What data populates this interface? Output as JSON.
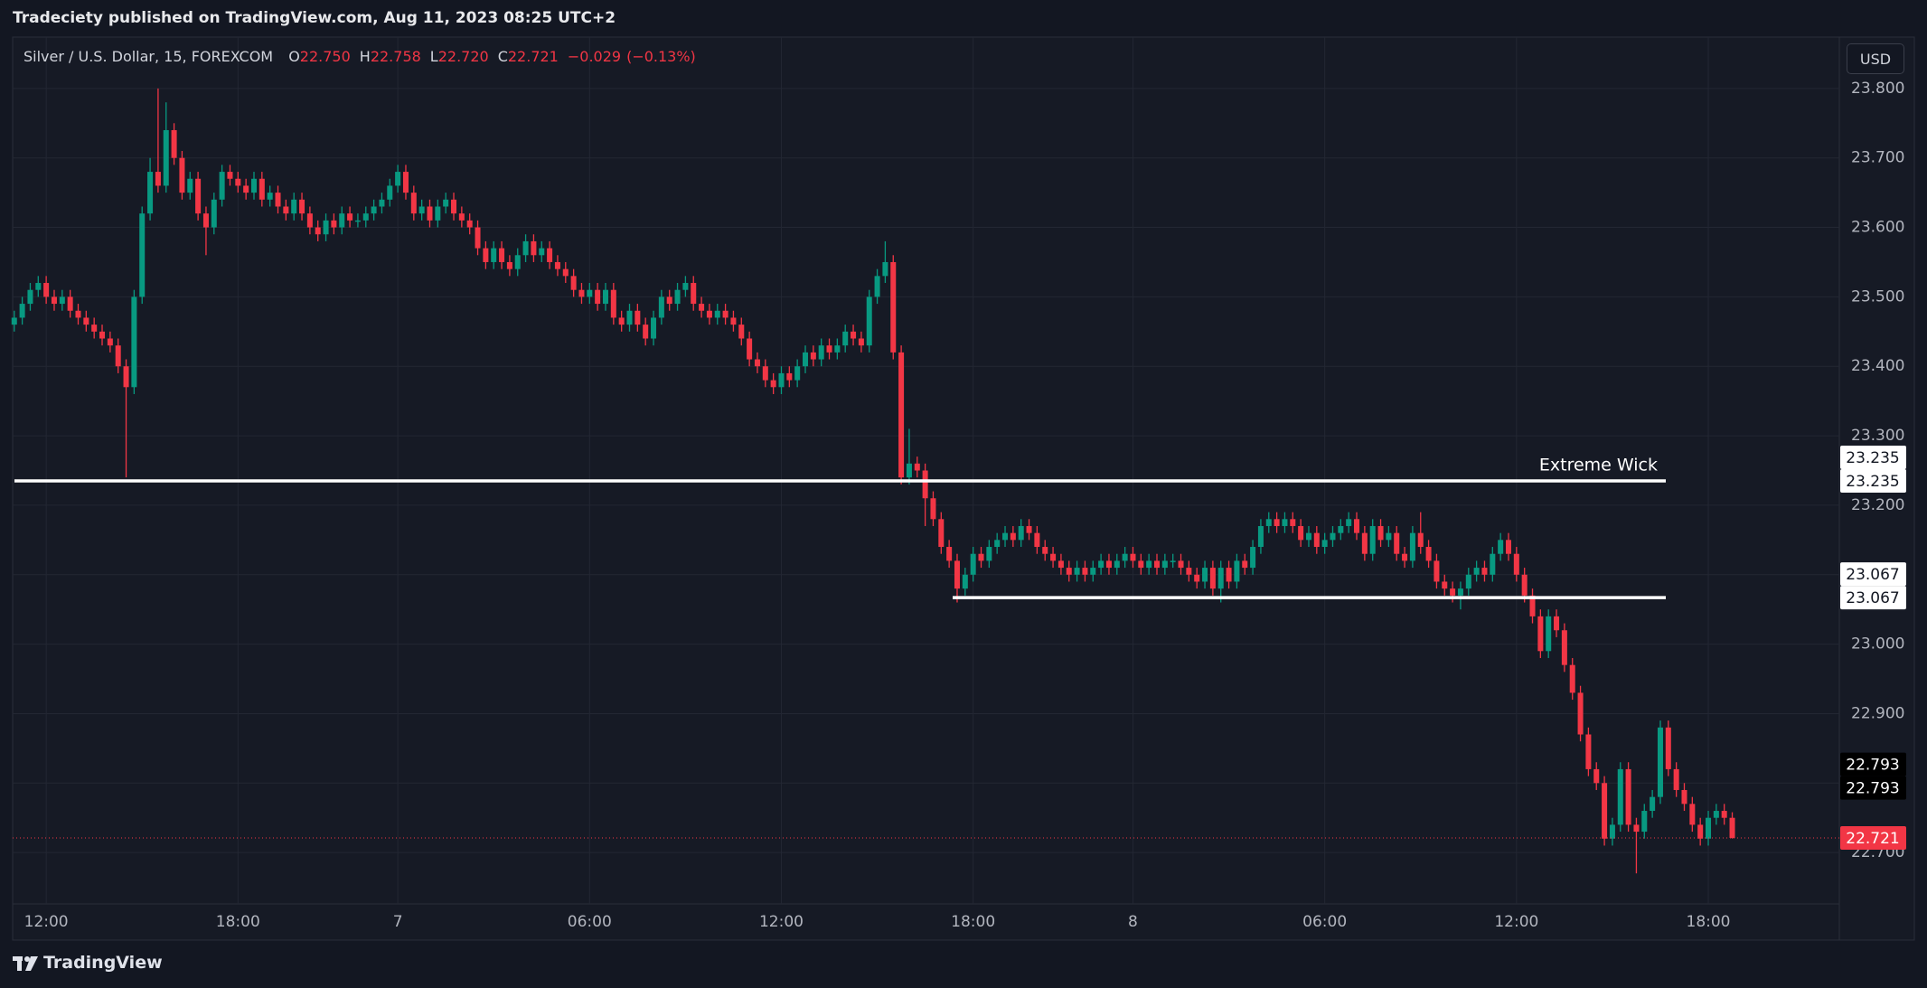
{
  "header": {
    "published": "Tradeciety published on TradingView.com, Aug 11, 2023 08:25 UTC+2"
  },
  "footer": {
    "brand": "TradingView"
  },
  "chart_data": {
    "type": "candlestick",
    "title": "Silver / U.S. Dollar, 15, FOREXCOM",
    "legend": [
      {
        "label": "O",
        "value": 22.75,
        "value_label": "22.750"
      },
      {
        "label": "H",
        "value": 22.758,
        "value_label": "22.758"
      },
      {
        "label": "L",
        "value": 22.72,
        "value_label": "22.720"
      },
      {
        "label": "C",
        "value": 22.721,
        "value_label": "22.721"
      }
    ],
    "change": {
      "value": -0.029,
      "label": "−0.029",
      "pct": -0.13,
      "pct_label": "(−0.13%)"
    },
    "currency": "USD",
    "up_color": "#089981",
    "down_color": "#f23645",
    "open": [
      23.46,
      23.47,
      23.49,
      23.51,
      23.52,
      23.5,
      23.49,
      23.5,
      23.48,
      23.47,
      23.46,
      23.45,
      23.44,
      23.43,
      23.4,
      23.37,
      23.5,
      23.62,
      23.68,
      23.66,
      23.74,
      23.7,
      23.65,
      23.67,
      23.62,
      23.6,
      23.64,
      23.68,
      23.67,
      23.66,
      23.65,
      23.67,
      23.64,
      23.65,
      23.63,
      23.62,
      23.64,
      23.62,
      23.6,
      23.59,
      23.61,
      23.6,
      23.62,
      23.61,
      23.61,
      23.62,
      23.63,
      23.64,
      23.66,
      23.68,
      23.65,
      23.62,
      23.63,
      23.61,
      23.63,
      23.64,
      23.62,
      23.61,
      23.6,
      23.57,
      23.55,
      23.57,
      23.55,
      23.54,
      23.56,
      23.58,
      23.56,
      23.57,
      23.55,
      23.54,
      23.53,
      23.51,
      23.5,
      23.51,
      23.49,
      23.51,
      23.47,
      23.46,
      23.48,
      23.46,
      23.44,
      23.47,
      23.5,
      23.49,
      23.51,
      23.52,
      23.49,
      23.48,
      23.47,
      23.48,
      23.47,
      23.46,
      23.44,
      23.41,
      23.4,
      23.38,
      23.37,
      23.39,
      23.38,
      23.4,
      23.42,
      23.41,
      23.43,
      23.42,
      23.43,
      23.45,
      23.44,
      23.43,
      23.5,
      23.53,
      23.55,
      23.42,
      23.24,
      23.26,
      23.25,
      23.21,
      23.18,
      23.14,
      23.12,
      23.08,
      23.1,
      23.13,
      23.12,
      23.14,
      23.15,
      23.16,
      23.15,
      23.17,
      23.16,
      23.14,
      23.13,
      23.12,
      23.11,
      23.1,
      23.11,
      23.1,
      23.11,
      23.12,
      23.11,
      23.12,
      23.13,
      23.12,
      23.11,
      23.12,
      23.11,
      23.12,
      23.12,
      23.11,
      23.1,
      23.09,
      23.11,
      23.08,
      23.11,
      23.09,
      23.12,
      23.11,
      23.14,
      23.17,
      23.18,
      23.17,
      23.18,
      23.17,
      23.15,
      23.16,
      23.14,
      23.15,
      23.16,
      23.17,
      23.18,
      23.16,
      23.13,
      23.17,
      23.15,
      23.16,
      23.13,
      23.12,
      23.16,
      23.14,
      23.12,
      23.09,
      23.08,
      23.07,
      23.08,
      23.1,
      23.11,
      23.1,
      23.13,
      23.15,
      23.13,
      23.1,
      23.07,
      23.04,
      22.99,
      23.04,
      23.02,
      22.97,
      22.93,
      22.87,
      22.82,
      22.8,
      22.72,
      22.74,
      22.82,
      22.74,
      22.73,
      22.76,
      22.78,
      22.88,
      22.82,
      22.79,
      22.77,
      22.74,
      22.72,
      22.75,
      22.76,
      22.75
    ],
    "high": [
      23.48,
      23.5,
      23.52,
      23.53,
      23.53,
      23.51,
      23.51,
      23.51,
      23.49,
      23.48,
      23.47,
      23.46,
      23.45,
      23.44,
      23.41,
      23.51,
      23.63,
      23.7,
      23.8,
      23.78,
      23.75,
      23.71,
      23.68,
      23.68,
      23.63,
      23.65,
      23.69,
      23.69,
      23.68,
      23.67,
      23.68,
      23.68,
      23.66,
      23.66,
      23.64,
      23.65,
      23.65,
      23.63,
      23.61,
      23.62,
      23.62,
      23.63,
      23.63,
      23.62,
      23.63,
      23.64,
      23.65,
      23.67,
      23.69,
      23.69,
      23.66,
      23.64,
      23.64,
      23.64,
      23.65,
      23.65,
      23.63,
      23.62,
      23.61,
      23.58,
      23.58,
      23.58,
      23.56,
      23.57,
      23.59,
      23.59,
      23.58,
      23.58,
      23.56,
      23.55,
      23.54,
      23.52,
      23.52,
      23.52,
      23.52,
      23.52,
      23.48,
      23.49,
      23.49,
      23.47,
      23.48,
      23.51,
      23.51,
      23.52,
      23.53,
      23.53,
      23.5,
      23.49,
      23.49,
      23.49,
      23.48,
      23.47,
      23.45,
      23.42,
      23.41,
      23.39,
      23.4,
      23.4,
      23.41,
      23.43,
      23.43,
      23.44,
      23.44,
      23.44,
      23.46,
      23.46,
      23.45,
      23.51,
      23.54,
      23.58,
      23.56,
      23.43,
      23.31,
      23.27,
      23.26,
      23.22,
      23.19,
      23.15,
      23.13,
      23.11,
      23.14,
      23.14,
      23.15,
      23.16,
      23.17,
      23.17,
      23.18,
      23.18,
      23.17,
      23.15,
      23.14,
      23.13,
      23.12,
      23.12,
      23.12,
      23.12,
      23.13,
      23.13,
      23.13,
      23.14,
      23.14,
      23.13,
      23.13,
      23.13,
      23.13,
      23.13,
      23.13,
      23.12,
      23.11,
      23.12,
      23.12,
      23.12,
      23.12,
      23.13,
      23.13,
      23.15,
      23.18,
      23.19,
      23.19,
      23.19,
      23.19,
      23.18,
      23.17,
      23.17,
      23.16,
      23.17,
      23.18,
      23.19,
      23.19,
      23.17,
      23.18,
      23.18,
      23.17,
      23.17,
      23.14,
      23.17,
      23.19,
      23.15,
      23.13,
      23.1,
      23.09,
      23.09,
      23.11,
      23.12,
      23.12,
      23.14,
      23.16,
      23.16,
      23.14,
      23.11,
      23.08,
      23.05,
      23.05,
      23.05,
      23.03,
      22.98,
      22.94,
      22.88,
      22.83,
      22.81,
      22.75,
      22.83,
      22.83,
      22.75,
      22.77,
      22.79,
      22.89,
      22.89,
      22.83,
      22.8,
      22.78,
      22.75,
      22.76,
      22.77,
      22.77,
      22.758
    ],
    "low": [
      23.45,
      23.46,
      23.48,
      23.5,
      23.49,
      23.48,
      23.48,
      23.47,
      23.46,
      23.45,
      23.44,
      23.43,
      23.42,
      23.39,
      23.24,
      23.36,
      23.49,
      23.61,
      23.65,
      23.65,
      23.69,
      23.64,
      23.64,
      23.61,
      23.56,
      23.59,
      23.63,
      23.66,
      23.65,
      23.64,
      23.64,
      23.63,
      23.63,
      23.62,
      23.61,
      23.61,
      23.61,
      23.59,
      23.58,
      23.58,
      23.59,
      23.59,
      23.6,
      23.6,
      23.6,
      23.61,
      23.62,
      23.63,
      23.65,
      23.64,
      23.61,
      23.61,
      23.6,
      23.6,
      23.62,
      23.61,
      23.6,
      23.59,
      23.56,
      23.54,
      23.54,
      23.54,
      23.53,
      23.53,
      23.55,
      23.55,
      23.55,
      23.54,
      23.53,
      23.52,
      23.5,
      23.49,
      23.49,
      23.48,
      23.48,
      23.46,
      23.45,
      23.45,
      23.45,
      23.43,
      23.43,
      23.46,
      23.48,
      23.48,
      23.5,
      23.48,
      23.47,
      23.46,
      23.46,
      23.46,
      23.45,
      23.43,
      23.4,
      23.39,
      23.37,
      23.36,
      23.36,
      23.37,
      23.37,
      23.39,
      23.4,
      23.4,
      23.41,
      23.41,
      23.42,
      23.43,
      23.42,
      23.42,
      23.49,
      23.52,
      23.41,
      23.23,
      23.23,
      23.24,
      23.17,
      23.17,
      23.13,
      23.11,
      23.06,
      23.07,
      23.09,
      23.11,
      23.11,
      23.13,
      23.14,
      23.14,
      23.14,
      23.15,
      23.13,
      23.12,
      23.11,
      23.1,
      23.09,
      23.09,
      23.09,
      23.09,
      23.1,
      23.1,
      23.1,
      23.11,
      23.11,
      23.1,
      23.1,
      23.1,
      23.1,
      23.11,
      23.1,
      23.09,
      23.08,
      23.08,
      23.07,
      23.06,
      23.08,
      23.08,
      23.1,
      23.1,
      23.13,
      23.16,
      23.16,
      23.16,
      23.16,
      23.14,
      23.14,
      23.13,
      23.13,
      23.14,
      23.15,
      23.16,
      23.15,
      23.12,
      23.12,
      23.14,
      23.14,
      23.12,
      23.11,
      23.11,
      23.13,
      23.11,
      23.08,
      23.07,
      23.06,
      23.05,
      23.07,
      23.09,
      23.09,
      23.09,
      23.12,
      23.12,
      23.09,
      23.06,
      23.03,
      22.98,
      22.98,
      23.01,
      22.96,
      22.92,
      22.86,
      22.81,
      22.79,
      22.71,
      22.71,
      22.73,
      22.73,
      22.67,
      22.72,
      22.75,
      22.77,
      22.81,
      22.78,
      22.76,
      22.73,
      22.71,
      22.71,
      22.74,
      22.74,
      22.72
    ],
    "close": [
      23.47,
      23.49,
      23.51,
      23.52,
      23.5,
      23.49,
      23.5,
      23.48,
      23.47,
      23.46,
      23.45,
      23.44,
      23.43,
      23.4,
      23.37,
      23.5,
      23.62,
      23.68,
      23.66,
      23.74,
      23.7,
      23.65,
      23.67,
      23.62,
      23.6,
      23.64,
      23.68,
      23.67,
      23.66,
      23.65,
      23.67,
      23.64,
      23.65,
      23.63,
      23.62,
      23.64,
      23.62,
      23.6,
      23.59,
      23.61,
      23.6,
      23.62,
      23.61,
      23.61,
      23.62,
      23.63,
      23.64,
      23.66,
      23.68,
      23.65,
      23.62,
      23.63,
      23.61,
      23.63,
      23.64,
      23.62,
      23.61,
      23.6,
      23.57,
      23.55,
      23.57,
      23.55,
      23.54,
      23.56,
      23.58,
      23.56,
      23.57,
      23.55,
      23.54,
      23.53,
      23.51,
      23.5,
      23.51,
      23.49,
      23.51,
      23.47,
      23.46,
      23.48,
      23.46,
      23.44,
      23.47,
      23.5,
      23.49,
      23.51,
      23.52,
      23.49,
      23.48,
      23.47,
      23.48,
      23.47,
      23.46,
      23.44,
      23.41,
      23.4,
      23.38,
      23.37,
      23.39,
      23.38,
      23.4,
      23.42,
      23.41,
      23.43,
      23.42,
      23.43,
      23.45,
      23.44,
      23.43,
      23.5,
      23.53,
      23.55,
      23.42,
      23.24,
      23.26,
      23.25,
      23.21,
      23.18,
      23.14,
      23.12,
      23.08,
      23.1,
      23.13,
      23.12,
      23.14,
      23.15,
      23.16,
      23.15,
      23.17,
      23.16,
      23.14,
      23.13,
      23.12,
      23.11,
      23.1,
      23.11,
      23.1,
      23.11,
      23.12,
      23.11,
      23.12,
      23.13,
      23.12,
      23.11,
      23.12,
      23.11,
      23.12,
      23.12,
      23.11,
      23.1,
      23.09,
      23.11,
      23.08,
      23.11,
      23.09,
      23.12,
      23.11,
      23.14,
      23.17,
      23.18,
      23.17,
      23.18,
      23.17,
      23.15,
      23.16,
      23.14,
      23.15,
      23.16,
      23.17,
      23.18,
      23.16,
      23.13,
      23.17,
      23.15,
      23.16,
      23.13,
      23.12,
      23.16,
      23.14,
      23.12,
      23.09,
      23.08,
      23.07,
      23.08,
      23.1,
      23.11,
      23.1,
      23.13,
      23.15,
      23.13,
      23.1,
      23.07,
      23.04,
      22.99,
      23.04,
      23.02,
      22.97,
      22.93,
      22.87,
      22.82,
      22.8,
      22.72,
      22.74,
      22.82,
      22.74,
      22.73,
      22.76,
      22.78,
      22.88,
      22.82,
      22.79,
      22.77,
      22.74,
      22.72,
      22.75,
      22.76,
      22.75,
      22.721
    ],
    "xlim": [
      -0.2,
      228.4
    ],
    "xticks": [
      {
        "value": 4,
        "label": "12:00"
      },
      {
        "value": 28,
        "label": "18:00"
      },
      {
        "value": 48,
        "label": "7"
      },
      {
        "value": 72,
        "label": "06:00"
      },
      {
        "value": 96,
        "label": "12:00"
      },
      {
        "value": 120,
        "label": "18:00"
      },
      {
        "value": 140,
        "label": "8"
      },
      {
        "value": 164,
        "label": "06:00"
      },
      {
        "value": 188,
        "label": "12:00"
      },
      {
        "value": 212,
        "label": "18:00"
      }
    ],
    "ylim": [
      22.626,
      23.874
    ],
    "yticks": [
      {
        "value": 23.8,
        "label": "23.800"
      },
      {
        "value": 23.7,
        "label": "23.700"
      },
      {
        "value": 23.6,
        "label": "23.600"
      },
      {
        "value": 23.5,
        "label": "23.500"
      },
      {
        "value": 23.4,
        "label": "23.400"
      },
      {
        "value": 23.3,
        "label": "23.300"
      },
      {
        "value": 23.2,
        "label": "23.200"
      },
      {
        "value": 23.1,
        "label": "23.100"
      },
      {
        "value": 23,
        "label": "23.000"
      },
      {
        "value": 22.9,
        "label": "22.900"
      },
      {
        "value": 22.8,
        "label": "22.800"
      },
      {
        "value": 22.7,
        "label": "22.700"
      }
    ],
    "grid": true,
    "levels": [
      {
        "value": 23.235,
        "label": "23.235",
        "text": "Extreme Wick"
      },
      {
        "value": 23.067,
        "label": "23.067"
      }
    ],
    "marker": {
      "value": 22.793,
      "label": "22.793"
    },
    "last_price": {
      "value": 22.721,
      "label": "22.721"
    }
  }
}
